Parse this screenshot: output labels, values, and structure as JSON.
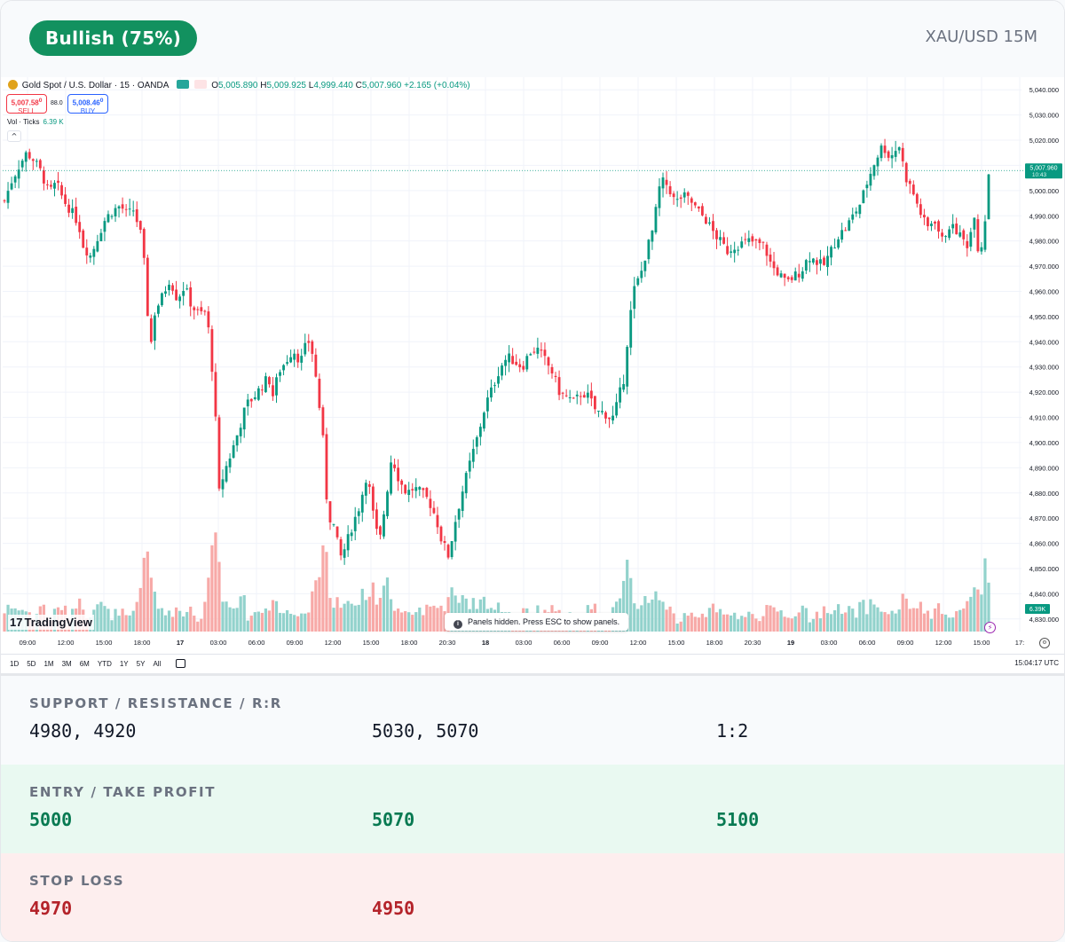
{
  "header": {
    "sentiment_badge": "Bullish (75%)",
    "pair": "XAU/USD 15M"
  },
  "chart": {
    "symbol_title": "Gold Spot / U.S. Dollar · 15 · OANDA",
    "ohlc": {
      "o_label": "O",
      "o": "5,005.890",
      "h_label": "H",
      "h": "5,009.925",
      "l_label": "L",
      "l": "4,999.440",
      "c_label": "C",
      "c": "5,007.960",
      "change": "+2.165 (+0.04%)"
    },
    "sell_price": "5,007.58",
    "sell_sup": "0",
    "sell_label": "SELL",
    "spread": "88.0",
    "buy_price": "5,008.46",
    "buy_sup": "0",
    "buy_label": "BUY",
    "volume_label": "Vol · Ticks",
    "volume_value": "6.39 K",
    "collapse_glyph": "^",
    "logo_mark": "17",
    "logo_text": "TradingView",
    "panels_note": "Panels hidden. Press ESC to show panels.",
    "ranges": [
      "1D",
      "5D",
      "1M",
      "3M",
      "6M",
      "YTD",
      "1Y",
      "5Y",
      "All"
    ],
    "clock": "15:04:17 UTC",
    "price_tag": "5,007.960",
    "price_tag_timer": "10:43",
    "volume_tag": "6.39K",
    "lightning_glyph": "⚡",
    "colors": {
      "up": "#089981",
      "down": "#f23645",
      "vol_up": "#92d2cc",
      "vol_down": "#f7a9a7"
    }
  },
  "chart_data": {
    "type": "candlestick",
    "y_ticks": [
      "5,040.000",
      "5,030.000",
      "5,020.000",
      "5,010.000",
      "5,000.000",
      "4,990.000",
      "4,980.000",
      "4,970.000",
      "4,960.000",
      "4,950.000",
      "4,940.000",
      "4,930.000",
      "4,920.000",
      "4,910.000",
      "4,900.000",
      "4,890.000",
      "4,880.000",
      "4,870.000",
      "4,860.000",
      "4,850.000",
      "4,840.000",
      "4,830.000"
    ],
    "y_range": [
      4825,
      5045
    ],
    "x_ticks": [
      "09:00",
      "12:00",
      "15:00",
      "18:00",
      "17",
      "03:00",
      "06:00",
      "09:00",
      "12:00",
      "15:00",
      "18:00",
      "20:30",
      "18",
      "03:00",
      "06:00",
      "09:00",
      "12:00",
      "15:00",
      "18:00",
      "20:30",
      "19",
      "03:00",
      "06:00",
      "09:00",
      "12:00",
      "15:00",
      "17:"
    ],
    "x_ticks_bold": [
      "17",
      "18",
      "19"
    ],
    "close_path": [
      [
        0,
        4996
      ],
      [
        6,
        5004
      ],
      [
        12,
        5010
      ],
      [
        18,
        5015
      ],
      [
        24,
        5012
      ],
      [
        30,
        5007
      ],
      [
        36,
        4999
      ],
      [
        42,
        5003
      ],
      [
        48,
        4996
      ],
      [
        54,
        4992
      ],
      [
        60,
        4987
      ],
      [
        64,
        4978
      ],
      [
        70,
        4974
      ],
      [
        76,
        4982
      ],
      [
        82,
        4989
      ],
      [
        88,
        4992
      ],
      [
        94,
        4994
      ],
      [
        100,
        4990
      ],
      [
        104,
        4993
      ],
      [
        110,
        4984
      ],
      [
        114,
        4968
      ],
      [
        118,
        4936
      ],
      [
        122,
        4952
      ],
      [
        128,
        4958
      ],
      [
        134,
        4965
      ],
      [
        140,
        4957
      ],
      [
        146,
        4962
      ],
      [
        152,
        4954
      ],
      [
        158,
        4951
      ],
      [
        164,
        4952
      ],
      [
        170,
        4921
      ],
      [
        174,
        4880
      ],
      [
        178,
        4888
      ],
      [
        184,
        4896
      ],
      [
        190,
        4905
      ],
      [
        196,
        4915
      ],
      [
        202,
        4918
      ],
      [
        208,
        4922
      ],
      [
        214,
        4926
      ],
      [
        218,
        4918
      ],
      [
        222,
        4928
      ],
      [
        228,
        4932
      ],
      [
        234,
        4937
      ],
      [
        240,
        4932
      ],
      [
        246,
        4941
      ],
      [
        250,
        4935
      ],
      [
        254,
        4920
      ],
      [
        258,
        4903
      ],
      [
        262,
        4872
      ],
      [
        268,
        4866
      ],
      [
        272,
        4854
      ],
      [
        276,
        4858
      ],
      [
        282,
        4867
      ],
      [
        288,
        4875
      ],
      [
        294,
        4888
      ],
      [
        300,
        4868
      ],
      [
        304,
        4860
      ],
      [
        310,
        4880
      ],
      [
        314,
        4895
      ],
      [
        320,
        4885
      ],
      [
        326,
        4880
      ],
      [
        332,
        4882
      ],
      [
        338,
        4880
      ],
      [
        344,
        4877
      ],
      [
        350,
        4870
      ],
      [
        354,
        4862
      ],
      [
        360,
        4855
      ],
      [
        366,
        4870
      ],
      [
        372,
        4882
      ],
      [
        378,
        4893
      ],
      [
        384,
        4903
      ],
      [
        390,
        4915
      ],
      [
        396,
        4922
      ],
      [
        402,
        4930
      ],
      [
        408,
        4934
      ],
      [
        414,
        4932
      ],
      [
        420,
        4930
      ],
      [
        426,
        4936
      ],
      [
        432,
        4937
      ],
      [
        438,
        4933
      ],
      [
        444,
        4928
      ],
      [
        450,
        4920
      ],
      [
        456,
        4918
      ],
      [
        462,
        4916
      ],
      [
        468,
        4920
      ],
      [
        474,
        4918
      ],
      [
        480,
        4912
      ],
      [
        486,
        4912
      ],
      [
        490,
        4910
      ],
      [
        494,
        4910
      ],
      [
        498,
        4918
      ],
      [
        502,
        4925
      ],
      [
        506,
        4945
      ],
      [
        510,
        4960
      ],
      [
        516,
        4967
      ],
      [
        520,
        4975
      ],
      [
        526,
        4985
      ],
      [
        532,
        5004
      ],
      [
        538,
        5002
      ],
      [
        544,
        4995
      ],
      [
        550,
        4998
      ],
      [
        556,
        4996
      ],
      [
        562,
        4992
      ],
      [
        568,
        4989
      ],
      [
        574,
        4984
      ],
      [
        580,
        4980
      ],
      [
        586,
        4976
      ],
      [
        592,
        4978
      ],
      [
        598,
        4979
      ],
      [
        604,
        4980
      ],
      [
        610,
        4979
      ],
      [
        616,
        4978
      ],
      [
        622,
        4970
      ],
      [
        628,
        4967
      ],
      [
        634,
        4963
      ],
      [
        640,
        4966
      ],
      [
        646,
        4968
      ],
      [
        652,
        4974
      ],
      [
        658,
        4972
      ],
      [
        664,
        4970
      ],
      [
        670,
        4976
      ],
      [
        676,
        4982
      ],
      [
        682,
        4985
      ],
      [
        688,
        4990
      ],
      [
        694,
        4995
      ],
      [
        700,
        5004
      ],
      [
        706,
        5012
      ],
      [
        712,
        5018
      ],
      [
        718,
        5013
      ],
      [
        722,
        5016
      ],
      [
        726,
        5018
      ],
      [
        730,
        5006
      ],
      [
        736,
        5000
      ],
      [
        742,
        4992
      ],
      [
        748,
        4985
      ],
      [
        754,
        4989
      ],
      [
        760,
        4980
      ],
      [
        766,
        4986
      ],
      [
        772,
        4984
      ],
      [
        778,
        4980
      ],
      [
        782,
        4978
      ],
      [
        786,
        4993
      ],
      [
        790,
        4974
      ],
      [
        794,
        4982
      ],
      [
        798,
        5007
      ]
    ],
    "volume_peak_label": "6.39K"
  },
  "levels": {
    "sr_title": "SUPPORT / RESISTANCE / R:R",
    "support": "4980, 4920",
    "resistance": "5030, 5070",
    "rr": "1:2",
    "entry_title": "ENTRY / TAKE PROFIT",
    "entry": "5000",
    "tp1": "5070",
    "tp2": "5100",
    "stop_title": "STOP LOSS",
    "sl1": "4970",
    "sl2": "4950"
  }
}
